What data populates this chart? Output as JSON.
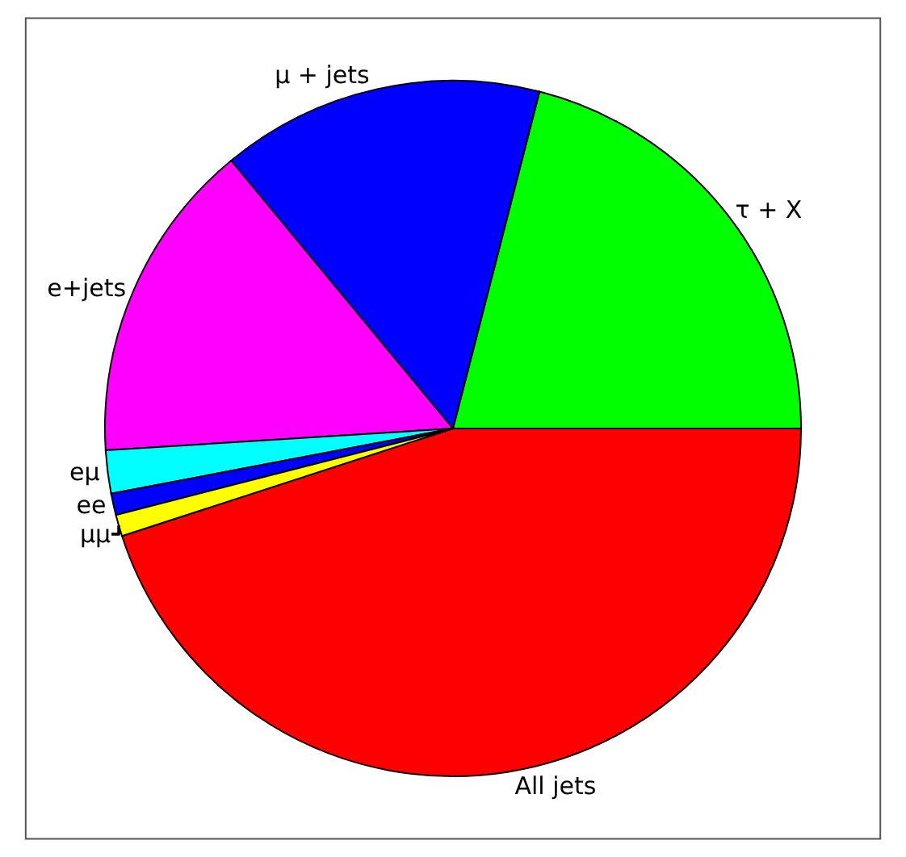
{
  "chart_data": {
    "type": "pie",
    "categories": [
      "All jets",
      "τ + X",
      "μ + jets",
      "e+jets",
      "eμ",
      "ee",
      "μμ"
    ],
    "values": [
      45,
      21,
      15,
      15,
      2,
      1,
      1
    ],
    "colors": [
      "#ff0000",
      "#00ff00",
      "#0000ff",
      "#ff00ff",
      "#00ffff",
      "#0000ff",
      "#ffff00"
    ],
    "legend": false
  }
}
